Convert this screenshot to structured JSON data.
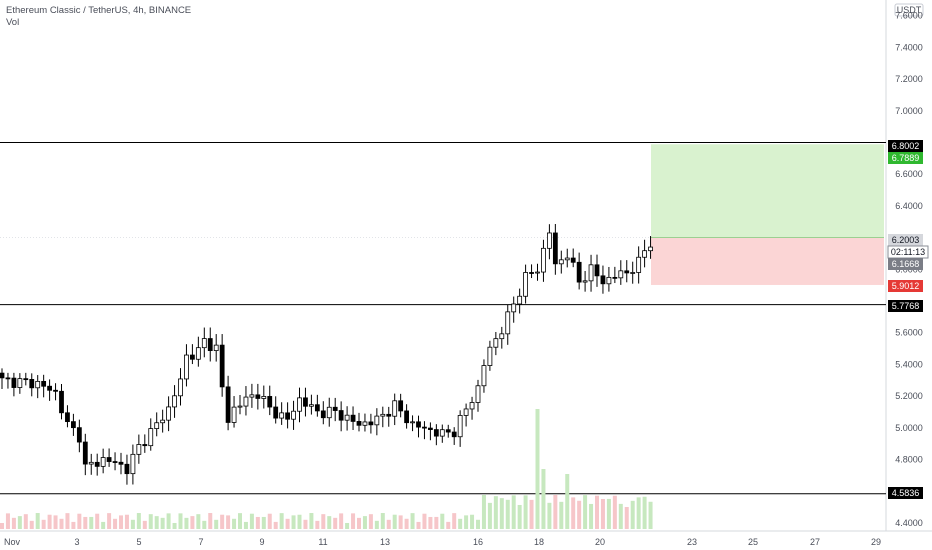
{
  "header": {
    "title": "Ethereum Classic / TetherUS, 4h, BINANCE",
    "volume_label": "Vol"
  },
  "axis": {
    "currency_badge": "USDT",
    "price_ticks": [
      "7.6000",
      "7.4000",
      "7.2000",
      "7.0000",
      "6.6000",
      "6.4000",
      "6.0000",
      "5.6000",
      "5.4000",
      "5.2000",
      "5.0000",
      "4.8000",
      "4.4000"
    ],
    "time_ticks": [
      "Nov",
      "3",
      "5",
      "7",
      "9",
      "11",
      "13",
      "16",
      "18",
      "20",
      "23",
      "25",
      "27",
      "29"
    ]
  },
  "price_labels": {
    "level_top": "6.8002",
    "take_profit": "6.7889",
    "entry": "6.2003",
    "countdown": "02:11:13",
    "last_price": "6.1668",
    "stop_loss": "5.9012",
    "level_mid": "5.7768",
    "level_bottom": "4.5836"
  },
  "colors": {
    "up_candle": "#ffffff",
    "down_candle": "#000000",
    "profit_zone": "#d9f2cf",
    "loss_zone": "#fbd5d5",
    "take_profit": "#2fb82f",
    "stop_loss": "#e53935",
    "level_line": "#000000",
    "vol_up": "#c7e8bf",
    "vol_down": "#f6c6c9"
  },
  "chart_data": {
    "type": "candlestick",
    "symbol": "ETCUSDT",
    "interval": "4h",
    "ylim": [
      4.35,
      7.7
    ],
    "x_ticks": [
      "Nov",
      "3",
      "5",
      "7",
      "9",
      "11",
      "13",
      "16",
      "18",
      "20",
      "23",
      "25",
      "27",
      "29"
    ],
    "horizontal_levels": [
      6.8002,
      5.7768,
      4.5836
    ],
    "position": {
      "entry": 6.2003,
      "take_profit": 6.7889,
      "stop_loss": 5.9012
    },
    "anchors": [
      [
        0,
        5.3
      ],
      [
        6,
        5.28
      ],
      [
        9,
        5.22
      ],
      [
        11,
        5.02
      ],
      [
        13,
        4.95
      ],
      [
        14,
        4.75
      ],
      [
        17,
        4.8
      ],
      [
        19,
        4.78
      ],
      [
        21,
        4.74
      ],
      [
        23,
        4.88
      ],
      [
        26,
        5.02
      ],
      [
        28,
        5.12
      ],
      [
        30,
        5.3
      ],
      [
        31,
        5.45
      ],
      [
        33,
        5.48
      ],
      [
        34,
        5.55
      ],
      [
        36,
        5.5
      ],
      [
        37,
        5.25
      ],
      [
        38,
        5.05
      ],
      [
        39,
        5.12
      ],
      [
        41,
        5.18
      ],
      [
        43,
        5.22
      ],
      [
        45,
        5.12
      ],
      [
        48,
        5.05
      ],
      [
        50,
        5.18
      ],
      [
        53,
        5.1
      ],
      [
        56,
        5.1
      ],
      [
        60,
        5.02
      ],
      [
        63,
        5.05
      ],
      [
        66,
        5.14
      ],
      [
        69,
        5.02
      ],
      [
        74,
        4.96
      ],
      [
        76,
        4.98
      ],
      [
        80,
        5.25
      ],
      [
        81,
        5.4
      ],
      [
        82,
        5.5
      ],
      [
        84,
        5.62
      ],
      [
        86,
        5.78
      ],
      [
        88,
        5.95
      ],
      [
        90,
        6.0
      ],
      [
        92,
        6.24
      ],
      [
        93,
        6.02
      ],
      [
        95,
        6.1
      ],
      [
        97,
        5.92
      ],
      [
        99,
        6.0
      ],
      [
        101,
        5.92
      ],
      [
        103,
        5.96
      ],
      [
        105,
        5.98
      ],
      [
        107,
        6.04
      ],
      [
        108,
        6.12
      ],
      [
        109,
        6.17
      ]
    ],
    "volume_spikes": [
      [
        90,
        120
      ],
      [
        91,
        60
      ],
      [
        95,
        55
      ],
      [
        101,
        30
      ],
      [
        105,
        22
      ]
    ]
  }
}
